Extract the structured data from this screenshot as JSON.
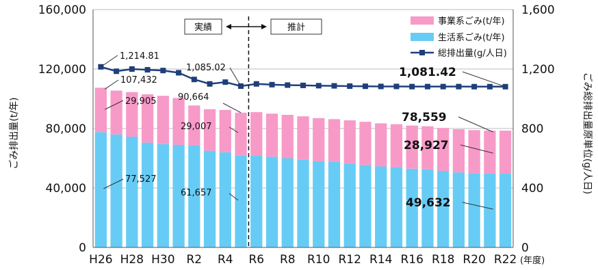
{
  "chart_data": {
    "type": "bar",
    "categories": [
      "H26",
      "H27",
      "H28",
      "H29",
      "H30",
      "R1",
      "R2",
      "R3",
      "R4",
      "R5",
      "R6",
      "R7",
      "R8",
      "R9",
      "R10",
      "R11",
      "R12",
      "R13",
      "R14",
      "R15",
      "R16",
      "R17",
      "R18",
      "R19",
      "R20",
      "R21",
      "R22"
    ],
    "x_tick_labels": [
      "H26",
      "H28",
      "H30",
      "R2",
      "R4",
      "R6",
      "R8",
      "R10",
      "R12",
      "R14",
      "R16",
      "R18",
      "R20",
      "R22"
    ],
    "x_unit": "(年度)",
    "ylabel": "ごみ排出量(t/年)",
    "y2label": "ごみ総排出量原単位(g/人日)",
    "ylim": [
      0,
      160000
    ],
    "y2lim": [
      0,
      1600
    ],
    "y_ticks": [
      "0",
      "40,000",
      "80,000",
      "120,000",
      "160,000"
    ],
    "y2_ticks": [
      "0",
      "400",
      "800",
      "1,200",
      "1,600"
    ],
    "series": [
      {
        "name": "生活系ごみ(t/年)",
        "axis": "left",
        "stack": true,
        "color": "#66ccf5",
        "values": [
          77527,
          76000,
          74500,
          70500,
          69500,
          69000,
          68500,
          65000,
          64000,
          61657,
          62000,
          61000,
          60000,
          59000,
          58000,
          57500,
          56500,
          55500,
          54500,
          54000,
          53000,
          52500,
          51500,
          50500,
          50000,
          49800,
          49632
        ]
      },
      {
        "name": "事業系ごみ(t/年)",
        "axis": "left",
        "stack": true,
        "color": "#f79ac8",
        "values": [
          29905,
          29500,
          30000,
          32500,
          32500,
          31500,
          27000,
          28000,
          28500,
          29007,
          29000,
          29000,
          29200,
          29200,
          29000,
          28800,
          29000,
          29000,
          29000,
          28900,
          29000,
          29000,
          28900,
          29000,
          28900,
          28800,
          28927
        ]
      },
      {
        "name": "総排出量(g/人日)",
        "axis": "right",
        "type": "line",
        "color": "#1f3f7a",
        "values": [
          1214.81,
          1185,
          1200,
          1195,
          1190,
          1175,
          1130,
          1100,
          1112,
          1085.02,
          1100,
          1095,
          1092,
          1090,
          1088,
          1087,
          1085,
          1084,
          1083,
          1083,
          1082,
          1082,
          1082,
          1082,
          1081.5,
          1081.5,
          1081.42
        ]
      }
    ],
    "annotations": {
      "top_h26": "107,432",
      "line_h26": "1,214.81",
      "biz_h26": "29,905",
      "home_h26": "77,527",
      "line_r5": "1,085.02",
      "top_r5": "90,664",
      "biz_r5": "29,007",
      "home_r5": "61,657",
      "line_r22": "1,081.42",
      "top_r22": "78,559",
      "biz_r22": "28,927",
      "home_r22": "49,632"
    },
    "phase_labels": {
      "actual": "実績",
      "forecast": "推計"
    },
    "legend": [
      "事業系ごみ(t/年)",
      "生活系ごみ(t/年)",
      "総排出量(g/人日)"
    ],
    "legend_position": "top-right",
    "grid": true
  }
}
